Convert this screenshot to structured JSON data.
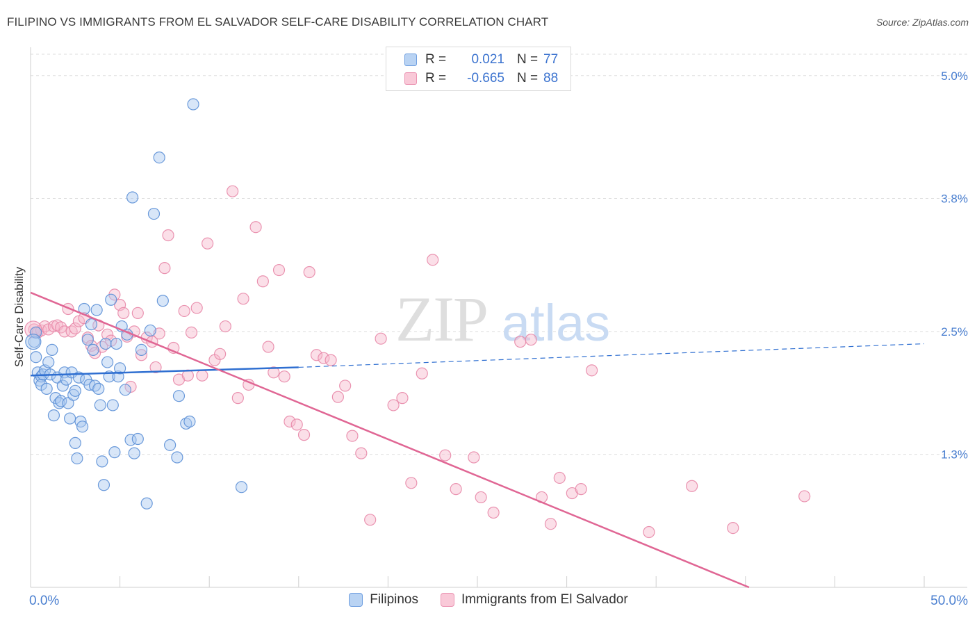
{
  "header": {
    "title": "FILIPINO VS IMMIGRANTS FROM EL SALVADOR SELF-CARE DISABILITY CORRELATION CHART",
    "source": "Source: ZipAtlas.com"
  },
  "watermark": {
    "zip": "ZIP",
    "atlas": "atlas"
  },
  "legend_top": {
    "rows": [
      {
        "r_label": "R =",
        "r_value": "0.021",
        "n_label": "N =",
        "n_value": "77"
      },
      {
        "r_label": "R =",
        "r_value": "-0.665",
        "n_label": "N =",
        "n_value": "88"
      }
    ]
  },
  "legend_bottom": {
    "items": [
      "Filipinos",
      "Immigrants from El Salvador"
    ]
  },
  "colors": {
    "blue_fill": "#a8c8f0",
    "blue_stroke": "#5b8fd6",
    "blue_line": "#2f6fd1",
    "pink_fill": "#f7b8cb",
    "pink_stroke": "#e888a8",
    "pink_line": "#e06694",
    "axis_text": "#4a7fd0",
    "grid": "#dedede"
  },
  "chart_data": {
    "type": "scatter",
    "xlabel": "",
    "ylabel": "Self-Care Disability",
    "xlim": [
      0,
      50
    ],
    "ylim": [
      0,
      5.25
    ],
    "x_tick_labels": [
      "0.0%",
      "50.0%"
    ],
    "y_ticks": [
      1.3,
      2.5,
      3.8,
      5.0
    ],
    "y_tick_labels": [
      "1.3%",
      "2.5%",
      "3.8%",
      "5.0%"
    ],
    "grid": true,
    "legend_position": "bottom",
    "series": [
      {
        "name": "Filipinos",
        "color": "#a8c8f0",
        "trend": {
          "x": [
            0,
            15,
            50
          ],
          "y": [
            2.07,
            2.15,
            2.38
          ],
          "solid_to": 15
        },
        "points": [
          [
            0.2,
            2.4
          ],
          [
            0.3,
            2.25
          ],
          [
            0.3,
            2.49
          ],
          [
            0.4,
            2.1
          ],
          [
            0.5,
            2.02
          ],
          [
            0.6,
            2.06
          ],
          [
            0.6,
            1.98
          ],
          [
            0.7,
            2.08
          ],
          [
            0.8,
            2.12
          ],
          [
            0.9,
            1.94
          ],
          [
            1.0,
            2.2
          ],
          [
            1.1,
            2.08
          ],
          [
            1.2,
            2.32
          ],
          [
            1.3,
            1.68
          ],
          [
            1.4,
            1.85
          ],
          [
            1.5,
            2.05
          ],
          [
            1.6,
            1.8
          ],
          [
            1.7,
            1.82
          ],
          [
            1.8,
            1.97
          ],
          [
            1.9,
            2.1
          ],
          [
            2.0,
            2.03
          ],
          [
            2.1,
            1.8
          ],
          [
            2.2,
            1.65
          ],
          [
            2.3,
            2.1
          ],
          [
            2.4,
            1.88
          ],
          [
            2.5,
            1.92
          ],
          [
            2.5,
            1.41
          ],
          [
            2.6,
            1.26
          ],
          [
            2.7,
            2.05
          ],
          [
            2.8,
            1.62
          ],
          [
            2.9,
            1.57
          ],
          [
            3.0,
            2.72
          ],
          [
            3.1,
            2.03
          ],
          [
            3.2,
            2.42
          ],
          [
            3.3,
            1.98
          ],
          [
            3.4,
            2.57
          ],
          [
            3.5,
            2.32
          ],
          [
            3.6,
            1.97
          ],
          [
            3.7,
            2.71
          ],
          [
            3.8,
            1.94
          ],
          [
            3.9,
            1.78
          ],
          [
            4.0,
            1.23
          ],
          [
            4.1,
            1.0
          ],
          [
            4.2,
            2.38
          ],
          [
            4.3,
            2.2
          ],
          [
            4.4,
            2.06
          ],
          [
            4.5,
            2.81
          ],
          [
            4.6,
            1.78
          ],
          [
            4.7,
            1.32
          ],
          [
            4.8,
            2.38
          ],
          [
            4.9,
            2.06
          ],
          [
            5.0,
            2.14
          ],
          [
            5.1,
            2.55
          ],
          [
            5.3,
            1.93
          ],
          [
            5.4,
            2.47
          ],
          [
            5.6,
            1.44
          ],
          [
            5.7,
            3.81
          ],
          [
            5.8,
            1.31
          ],
          [
            6.0,
            1.45
          ],
          [
            6.2,
            2.32
          ],
          [
            6.5,
            0.82
          ],
          [
            6.7,
            2.51
          ],
          [
            6.9,
            3.65
          ],
          [
            7.2,
            4.2
          ],
          [
            7.4,
            2.8
          ],
          [
            7.8,
            1.39
          ],
          [
            8.2,
            1.27
          ],
          [
            8.3,
            1.87
          ],
          [
            8.7,
            1.6
          ],
          [
            8.9,
            1.62
          ],
          [
            9.1,
            4.72
          ],
          [
            11.8,
            0.98
          ]
        ]
      },
      {
        "name": "Immigrants from El Salvador",
        "color": "#f7b8cb",
        "trend": {
          "x": [
            0,
            40.2
          ],
          "y": [
            2.88,
            0.0
          ]
        },
        "points": [
          [
            0.2,
            2.52
          ],
          [
            0.4,
            2.49
          ],
          [
            0.6,
            2.51
          ],
          [
            0.8,
            2.55
          ],
          [
            1.0,
            2.52
          ],
          [
            1.3,
            2.55
          ],
          [
            1.5,
            2.56
          ],
          [
            1.7,
            2.54
          ],
          [
            1.9,
            2.5
          ],
          [
            2.1,
            2.72
          ],
          [
            2.3,
            2.5
          ],
          [
            2.5,
            2.53
          ],
          [
            2.7,
            2.6
          ],
          [
            3.0,
            2.63
          ],
          [
            3.2,
            2.44
          ],
          [
            3.4,
            2.36
          ],
          [
            3.6,
            2.29
          ],
          [
            3.8,
            2.56
          ],
          [
            4.0,
            2.35
          ],
          [
            4.3,
            2.47
          ],
          [
            4.5,
            2.41
          ],
          [
            4.7,
            2.86
          ],
          [
            5.0,
            2.76
          ],
          [
            5.2,
            2.68
          ],
          [
            5.4,
            2.45
          ],
          [
            5.6,
            1.96
          ],
          [
            5.8,
            2.5
          ],
          [
            6.0,
            2.68
          ],
          [
            6.2,
            2.27
          ],
          [
            6.5,
            2.44
          ],
          [
            6.8,
            2.4
          ],
          [
            7.0,
            2.15
          ],
          [
            7.2,
            2.48
          ],
          [
            7.5,
            3.12
          ],
          [
            7.7,
            3.44
          ],
          [
            8.0,
            2.34
          ],
          [
            8.3,
            2.03
          ],
          [
            8.6,
            2.7
          ],
          [
            8.8,
            2.07
          ],
          [
            9.0,
            2.49
          ],
          [
            9.3,
            2.73
          ],
          [
            9.6,
            2.07
          ],
          [
            9.9,
            3.36
          ],
          [
            10.3,
            2.22
          ],
          [
            10.6,
            2.28
          ],
          [
            10.9,
            2.55
          ],
          [
            11.3,
            3.87
          ],
          [
            11.6,
            1.85
          ],
          [
            11.9,
            2.82
          ],
          [
            12.2,
            1.98
          ],
          [
            12.6,
            3.52
          ],
          [
            13.0,
            2.99
          ],
          [
            13.3,
            2.35
          ],
          [
            13.6,
            2.1
          ],
          [
            13.9,
            3.1
          ],
          [
            14.2,
            2.06
          ],
          [
            14.5,
            1.62
          ],
          [
            14.9,
            1.59
          ],
          [
            15.3,
            1.49
          ],
          [
            15.6,
            3.08
          ],
          [
            16.0,
            2.27
          ],
          [
            16.4,
            2.24
          ],
          [
            16.8,
            2.22
          ],
          [
            17.2,
            1.86
          ],
          [
            17.6,
            1.97
          ],
          [
            18.0,
            1.48
          ],
          [
            18.5,
            1.31
          ],
          [
            19.0,
            0.66
          ],
          [
            19.6,
            2.43
          ],
          [
            20.3,
            1.78
          ],
          [
            20.8,
            1.85
          ],
          [
            21.3,
            1.02
          ],
          [
            21.9,
            2.09
          ],
          [
            22.5,
            3.2
          ],
          [
            23.2,
            1.29
          ],
          [
            23.8,
            0.96
          ],
          [
            24.8,
            1.27
          ],
          [
            25.2,
            0.88
          ],
          [
            25.9,
            0.73
          ],
          [
            27.4,
            2.4
          ],
          [
            28.0,
            2.42
          ],
          [
            28.6,
            0.88
          ],
          [
            29.1,
            0.62
          ],
          [
            29.6,
            1.07
          ],
          [
            30.3,
            0.92
          ],
          [
            30.8,
            0.96
          ],
          [
            31.4,
            2.12
          ],
          [
            34.6,
            0.54
          ]
        ]
      }
    ],
    "extra_points": {
      "series": "Immigrants from El Salvador",
      "points": [
        [
          37.0,
          0.99
        ],
        [
          39.3,
          0.58
        ],
        [
          43.3,
          0.89
        ]
      ]
    }
  }
}
